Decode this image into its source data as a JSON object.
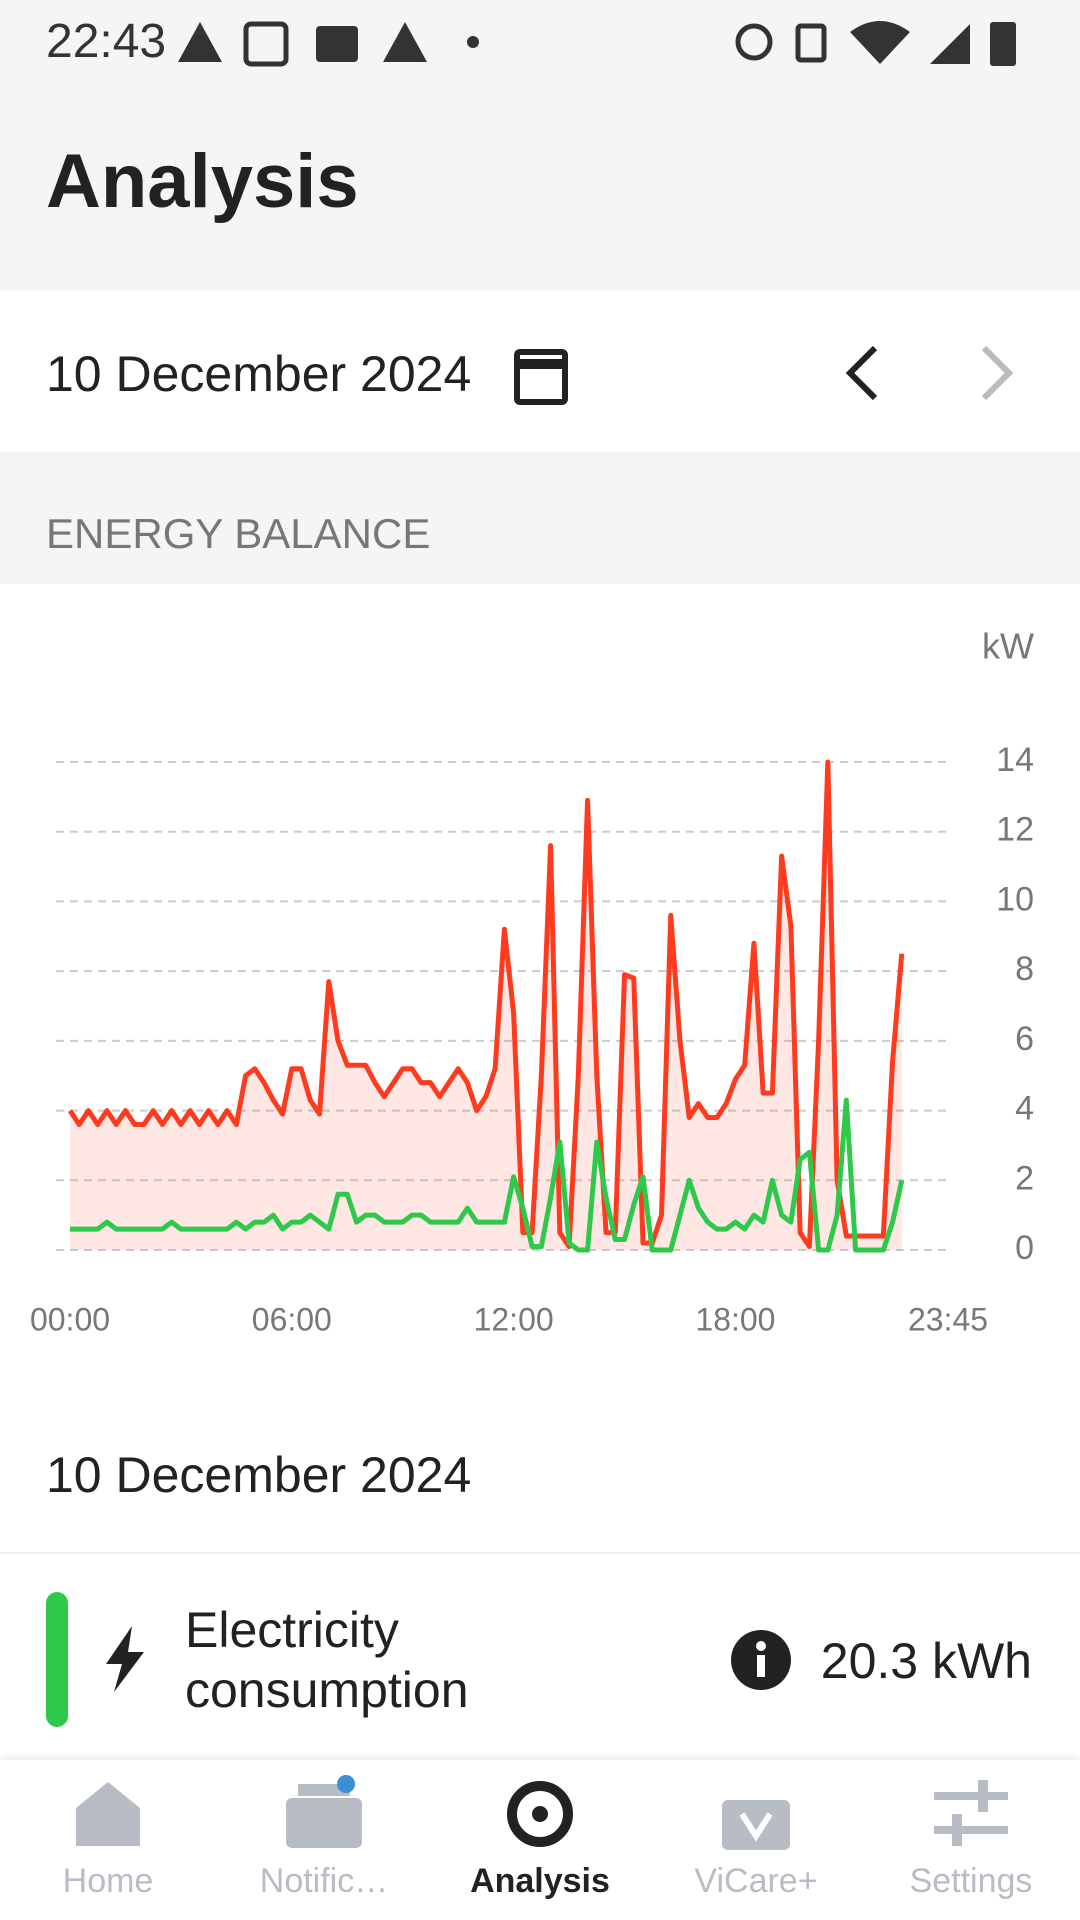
{
  "status_bar": {
    "time": "22:43"
  },
  "header": {
    "title": "Analysis"
  },
  "date_bar": {
    "date": "10 December 2024"
  },
  "section": {
    "title": "ENERGY BALANCE"
  },
  "chart_data": {
    "type": "line",
    "y_label": "kW",
    "categories": [
      "00:00",
      null,
      null,
      null,
      null,
      null,
      null,
      null,
      null,
      null,
      null,
      null,
      null,
      null,
      null,
      null,
      null,
      null,
      null,
      null,
      null,
      null,
      null,
      null,
      "06:00",
      null,
      null,
      null,
      null,
      null,
      null,
      null,
      null,
      null,
      null,
      null,
      null,
      null,
      null,
      null,
      null,
      null,
      null,
      null,
      null,
      null,
      null,
      null,
      "12:00",
      null,
      null,
      null,
      null,
      null,
      null,
      null,
      null,
      null,
      null,
      null,
      null,
      null,
      null,
      null,
      null,
      null,
      null,
      null,
      null,
      null,
      null,
      null,
      "18:00",
      null,
      null,
      null,
      null,
      null,
      null,
      null,
      null,
      null,
      null,
      null,
      null,
      null,
      null,
      null,
      null,
      null,
      null,
      null,
      null,
      null,
      null,
      "23:45"
    ],
    "series": [
      {
        "color": "#ff3b1f",
        "values": [
          4,
          3.6,
          4,
          3.6,
          4,
          3.6,
          4,
          3.6,
          3.6,
          4,
          3.6,
          4,
          3.6,
          4,
          3.6,
          4,
          3.6,
          4,
          3.6,
          5,
          5.2,
          4.8,
          4.3,
          3.9,
          5.2,
          5.2,
          4.3,
          3.9,
          7.7,
          6,
          5.3,
          5.3,
          5.3,
          4.8,
          4.4,
          4.8,
          5.2,
          5.2,
          4.8,
          4.8,
          4.4,
          4.8,
          5.2,
          4.8,
          4.0,
          4.4,
          5.2,
          9.2,
          6.8,
          0.5,
          0.5,
          5,
          11.6,
          0.5,
          0.1,
          5,
          12.9,
          5,
          0.5,
          0.5,
          7.9,
          7.8,
          0.2,
          0.2,
          1,
          9.6,
          6,
          3.8,
          4.2,
          3.8,
          3.8,
          4.2,
          4.9,
          5.3,
          8.8,
          4.5,
          4.5,
          11.3,
          9.3,
          0.5,
          0.1,
          6,
          14,
          2,
          0.4,
          0.4,
          0.4,
          0.4,
          0.4,
          5.4,
          8.5,
          null,
          null,
          null,
          null,
          null
        ]
      },
      {
        "color": "#2ec84a",
        "values": [
          0.6,
          0.6,
          0.6,
          0.6,
          0.8,
          0.6,
          0.6,
          0.6,
          0.6,
          0.6,
          0.6,
          0.8,
          0.6,
          0.6,
          0.6,
          0.6,
          0.6,
          0.6,
          0.8,
          0.6,
          0.8,
          0.8,
          1,
          0.6,
          0.8,
          0.8,
          1,
          0.8,
          0.6,
          1.6,
          1.6,
          0.8,
          1,
          1,
          0.8,
          0.8,
          0.8,
          1,
          1,
          0.8,
          0.8,
          0.8,
          0.8,
          1.2,
          0.8,
          0.8,
          0.8,
          0.8,
          2.1,
          1.2,
          0.1,
          0.1,
          1.5,
          3.1,
          0.2,
          0,
          0,
          3.1,
          1.5,
          0.3,
          0.3,
          1.3,
          2.1,
          0,
          0,
          0,
          1,
          2,
          1.2,
          0.8,
          0.6,
          0.6,
          0.8,
          0.6,
          1,
          0.8,
          2,
          1,
          0.8,
          2.6,
          2.8,
          0,
          0,
          1,
          4.3,
          0,
          0,
          0,
          0,
          0.8,
          2,
          null,
          null,
          null,
          null,
          null
        ]
      }
    ],
    "ylim": [
      0,
      14
    ],
    "yticks": [
      0,
      2,
      4,
      6,
      8,
      10,
      12,
      14
    ],
    "grid": true,
    "area": true
  },
  "summary": {
    "date": "10 December 2024",
    "items": [
      {
        "label": "Electricity consumption",
        "value": "20.3 kWh"
      }
    ]
  },
  "nav": {
    "items": [
      "Home",
      "Notific…",
      "Analysis",
      "ViCare+",
      "Settings"
    ]
  }
}
